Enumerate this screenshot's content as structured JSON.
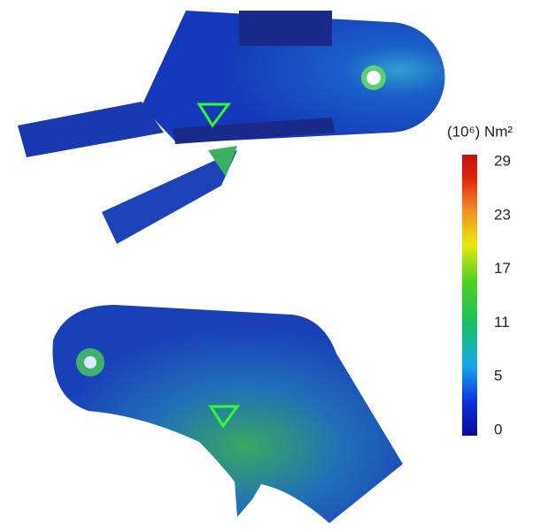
{
  "colorbar": {
    "label": "(10⁶) Nm²",
    "ticks": [
      29,
      23,
      17,
      11,
      5,
      0
    ]
  }
}
